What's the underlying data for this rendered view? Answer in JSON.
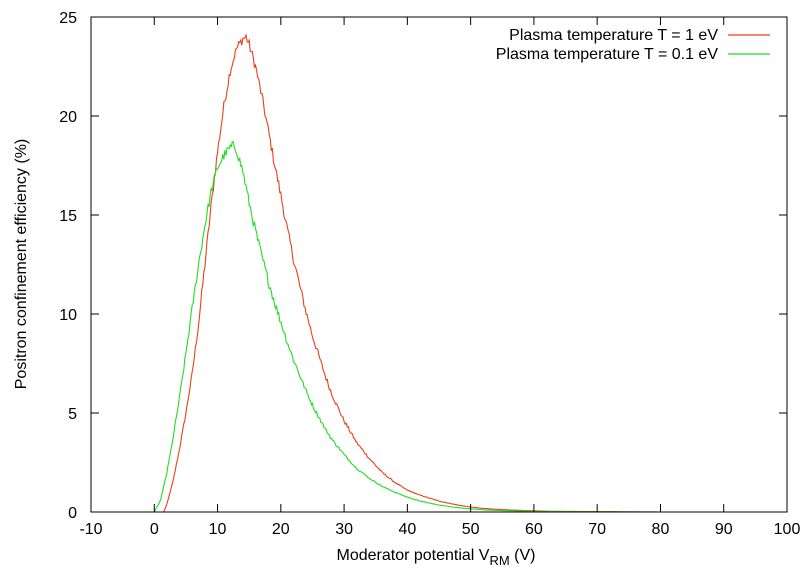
{
  "chart_data": {
    "type": "line",
    "xlabel": "Moderator potential V",
    "xlabel_subscript": "RM",
    "xlabel_unit": "(V)",
    "ylabel": "Positron confinement efficiency (%)",
    "xlim": [
      -10,
      100
    ],
    "ylim": [
      0,
      25
    ],
    "x_ticks": [
      -10,
      0,
      10,
      20,
      30,
      40,
      50,
      60,
      70,
      80,
      90,
      100
    ],
    "y_ticks": [
      0,
      5,
      10,
      15,
      20,
      25
    ],
    "x_tick_labels": [
      "-10",
      "0",
      "10",
      "20",
      "30",
      "40",
      "50",
      "60",
      "70",
      "80",
      "90",
      "100"
    ],
    "y_tick_labels": [
      "0",
      "5",
      "10",
      "15",
      "20",
      "25"
    ],
    "grid": false,
    "legend_position": "top-right",
    "series": [
      {
        "name": "Plasma temperature T = 1 eV",
        "color": "#e8401c",
        "x": [
          1.5,
          2,
          3,
          4,
          5,
          6,
          7,
          8,
          9,
          10,
          11,
          12,
          13,
          14,
          14.5,
          15,
          16,
          17,
          18,
          19,
          20,
          21,
          22,
          23,
          24,
          25,
          26,
          27,
          28,
          29,
          30,
          32,
          34,
          36,
          38,
          40,
          42,
          45,
          48,
          50,
          52,
          55,
          58,
          60,
          62,
          65,
          70,
          75,
          80,
          85,
          90,
          95,
          100
        ],
        "values": [
          0,
          0.4,
          1.6,
          3.2,
          5.0,
          7.0,
          9.5,
          12.5,
          15.5,
          18.2,
          20.5,
          22.3,
          23.4,
          23.9,
          24.0,
          23.6,
          22.5,
          21.0,
          19.3,
          17.6,
          16.0,
          14.3,
          12.8,
          11.4,
          10.1,
          8.9,
          7.9,
          6.9,
          6.0,
          5.3,
          4.6,
          3.5,
          2.7,
          2.0,
          1.5,
          1.1,
          0.85,
          0.55,
          0.35,
          0.25,
          0.18,
          0.12,
          0.08,
          0.06,
          0.04,
          0.03,
          0.02,
          0.01,
          0.0,
          0.0,
          0.0,
          0.0,
          0.0
        ]
      },
      {
        "name": "Plasma temperature T = 0.1 eV",
        "color": "#22dd22",
        "x": [
          0,
          1,
          2,
          3,
          4,
          5,
          6,
          7,
          8,
          9,
          10,
          11,
          12,
          12.5,
          13,
          14,
          15,
          16,
          17,
          18,
          19,
          20,
          21,
          22,
          23,
          24,
          25,
          26,
          27,
          28,
          29,
          30,
          32,
          34,
          36,
          38,
          40,
          42,
          45,
          48,
          50,
          52,
          55,
          58,
          60,
          65,
          70,
          75,
          80,
          85,
          90,
          95,
          100
        ],
        "values": [
          0,
          0.6,
          2.0,
          3.8,
          5.8,
          8.0,
          10.3,
          12.5,
          14.5,
          16.2,
          17.4,
          18.0,
          18.4,
          18.5,
          18.3,
          17.2,
          15.6,
          14.2,
          12.9,
          11.7,
          10.6,
          9.6,
          8.6,
          7.7,
          6.9,
          6.1,
          5.4,
          4.8,
          4.2,
          3.7,
          3.3,
          2.9,
          2.2,
          1.7,
          1.3,
          1.0,
          0.75,
          0.55,
          0.35,
          0.22,
          0.16,
          0.11,
          0.07,
          0.05,
          0.03,
          0.02,
          0.01,
          0.0,
          0.0,
          0.0,
          0.0,
          0.0,
          0.0
        ]
      }
    ]
  }
}
